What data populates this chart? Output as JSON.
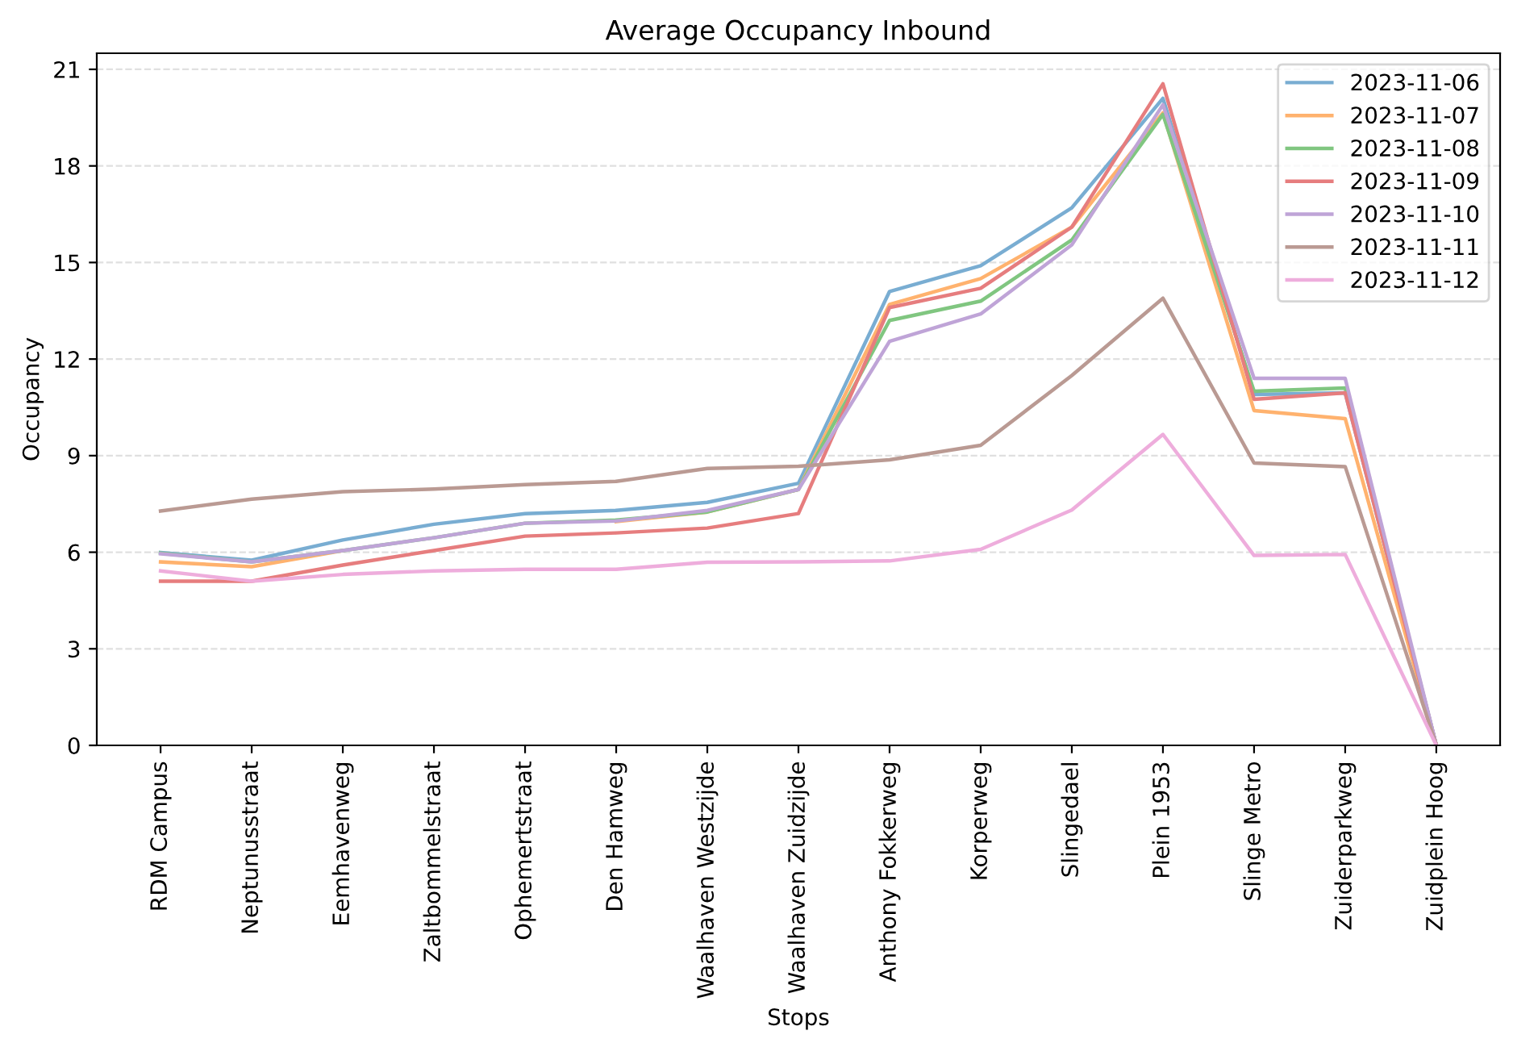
{
  "chart_data": {
    "type": "line",
    "title": "Average Occupancy Inbound",
    "xlabel": "Stops",
    "ylabel": "Occupancy",
    "categories": [
      "RDM Campus",
      "Neptunusstraat",
      "Eemhavenweg",
      "Zaltbommelstraat",
      "Ophemertstraat",
      "Den Hamweg",
      "Waalhaven Westzijde",
      "Waalhaven Zuidzijde",
      "Anthony Fokkerweg",
      "Korperweg",
      "Slingedael",
      "Plein 1953",
      "Slinge Metro",
      "Zuiderparkweg",
      "Zuidplein Hoog"
    ],
    "series": [
      {
        "name": "2023-11-06",
        "color": "#79add2",
        "values": [
          5.99,
          5.75,
          6.38,
          6.87,
          7.2,
          7.3,
          7.55,
          8.14,
          14.1,
          14.9,
          16.7,
          20.1,
          10.9,
          10.95,
          0
        ]
      },
      {
        "name": "2023-11-07",
        "color": "#ffb26e",
        "values": [
          5.7,
          5.55,
          6.05,
          null,
          null,
          6.95,
          7.25,
          7.95,
          13.7,
          14.5,
          16.1,
          19.65,
          10.4,
          10.15,
          0
        ]
      },
      {
        "name": "2023-11-08",
        "color": "#80c680",
        "values": [
          5.97,
          5.7,
          6.05,
          6.45,
          6.9,
          7.0,
          7.25,
          7.95,
          13.2,
          13.8,
          15.7,
          19.6,
          11.0,
          11.1,
          0
        ]
      },
      {
        "name": "2023-11-09",
        "color": "#e67d7e",
        "values": [
          5.1,
          5.1,
          5.6,
          6.05,
          6.5,
          6.6,
          6.75,
          7.2,
          13.6,
          14.2,
          16.1,
          20.55,
          10.75,
          10.95,
          0
        ]
      },
      {
        "name": "2023-11-10",
        "color": "#bfa4d7",
        "values": [
          5.95,
          5.7,
          6.05,
          6.45,
          6.9,
          6.97,
          7.3,
          7.95,
          12.55,
          13.4,
          15.55,
          19.9,
          11.4,
          11.4,
          0
        ]
      },
      {
        "name": "2023-11-11",
        "color": "#ba9a93",
        "values": [
          7.28,
          7.65,
          7.88,
          7.96,
          8.1,
          8.2,
          8.6,
          8.67,
          8.87,
          9.32,
          11.49,
          13.89,
          8.77,
          8.66,
          0
        ]
      },
      {
        "name": "2023-11-12",
        "color": "#eeaddc",
        "values": [
          5.42,
          5.1,
          5.31,
          5.42,
          5.47,
          5.47,
          5.69,
          5.7,
          5.73,
          6.09,
          7.31,
          9.66,
          5.9,
          5.93,
          0
        ]
      }
    ],
    "ylim": [
      0,
      21.5
    ],
    "yticks": [
      0,
      3,
      6,
      9,
      12,
      15,
      18,
      21
    ],
    "grid": "y",
    "legend": "top right",
    "marker": "none",
    "line_style": "solid"
  }
}
